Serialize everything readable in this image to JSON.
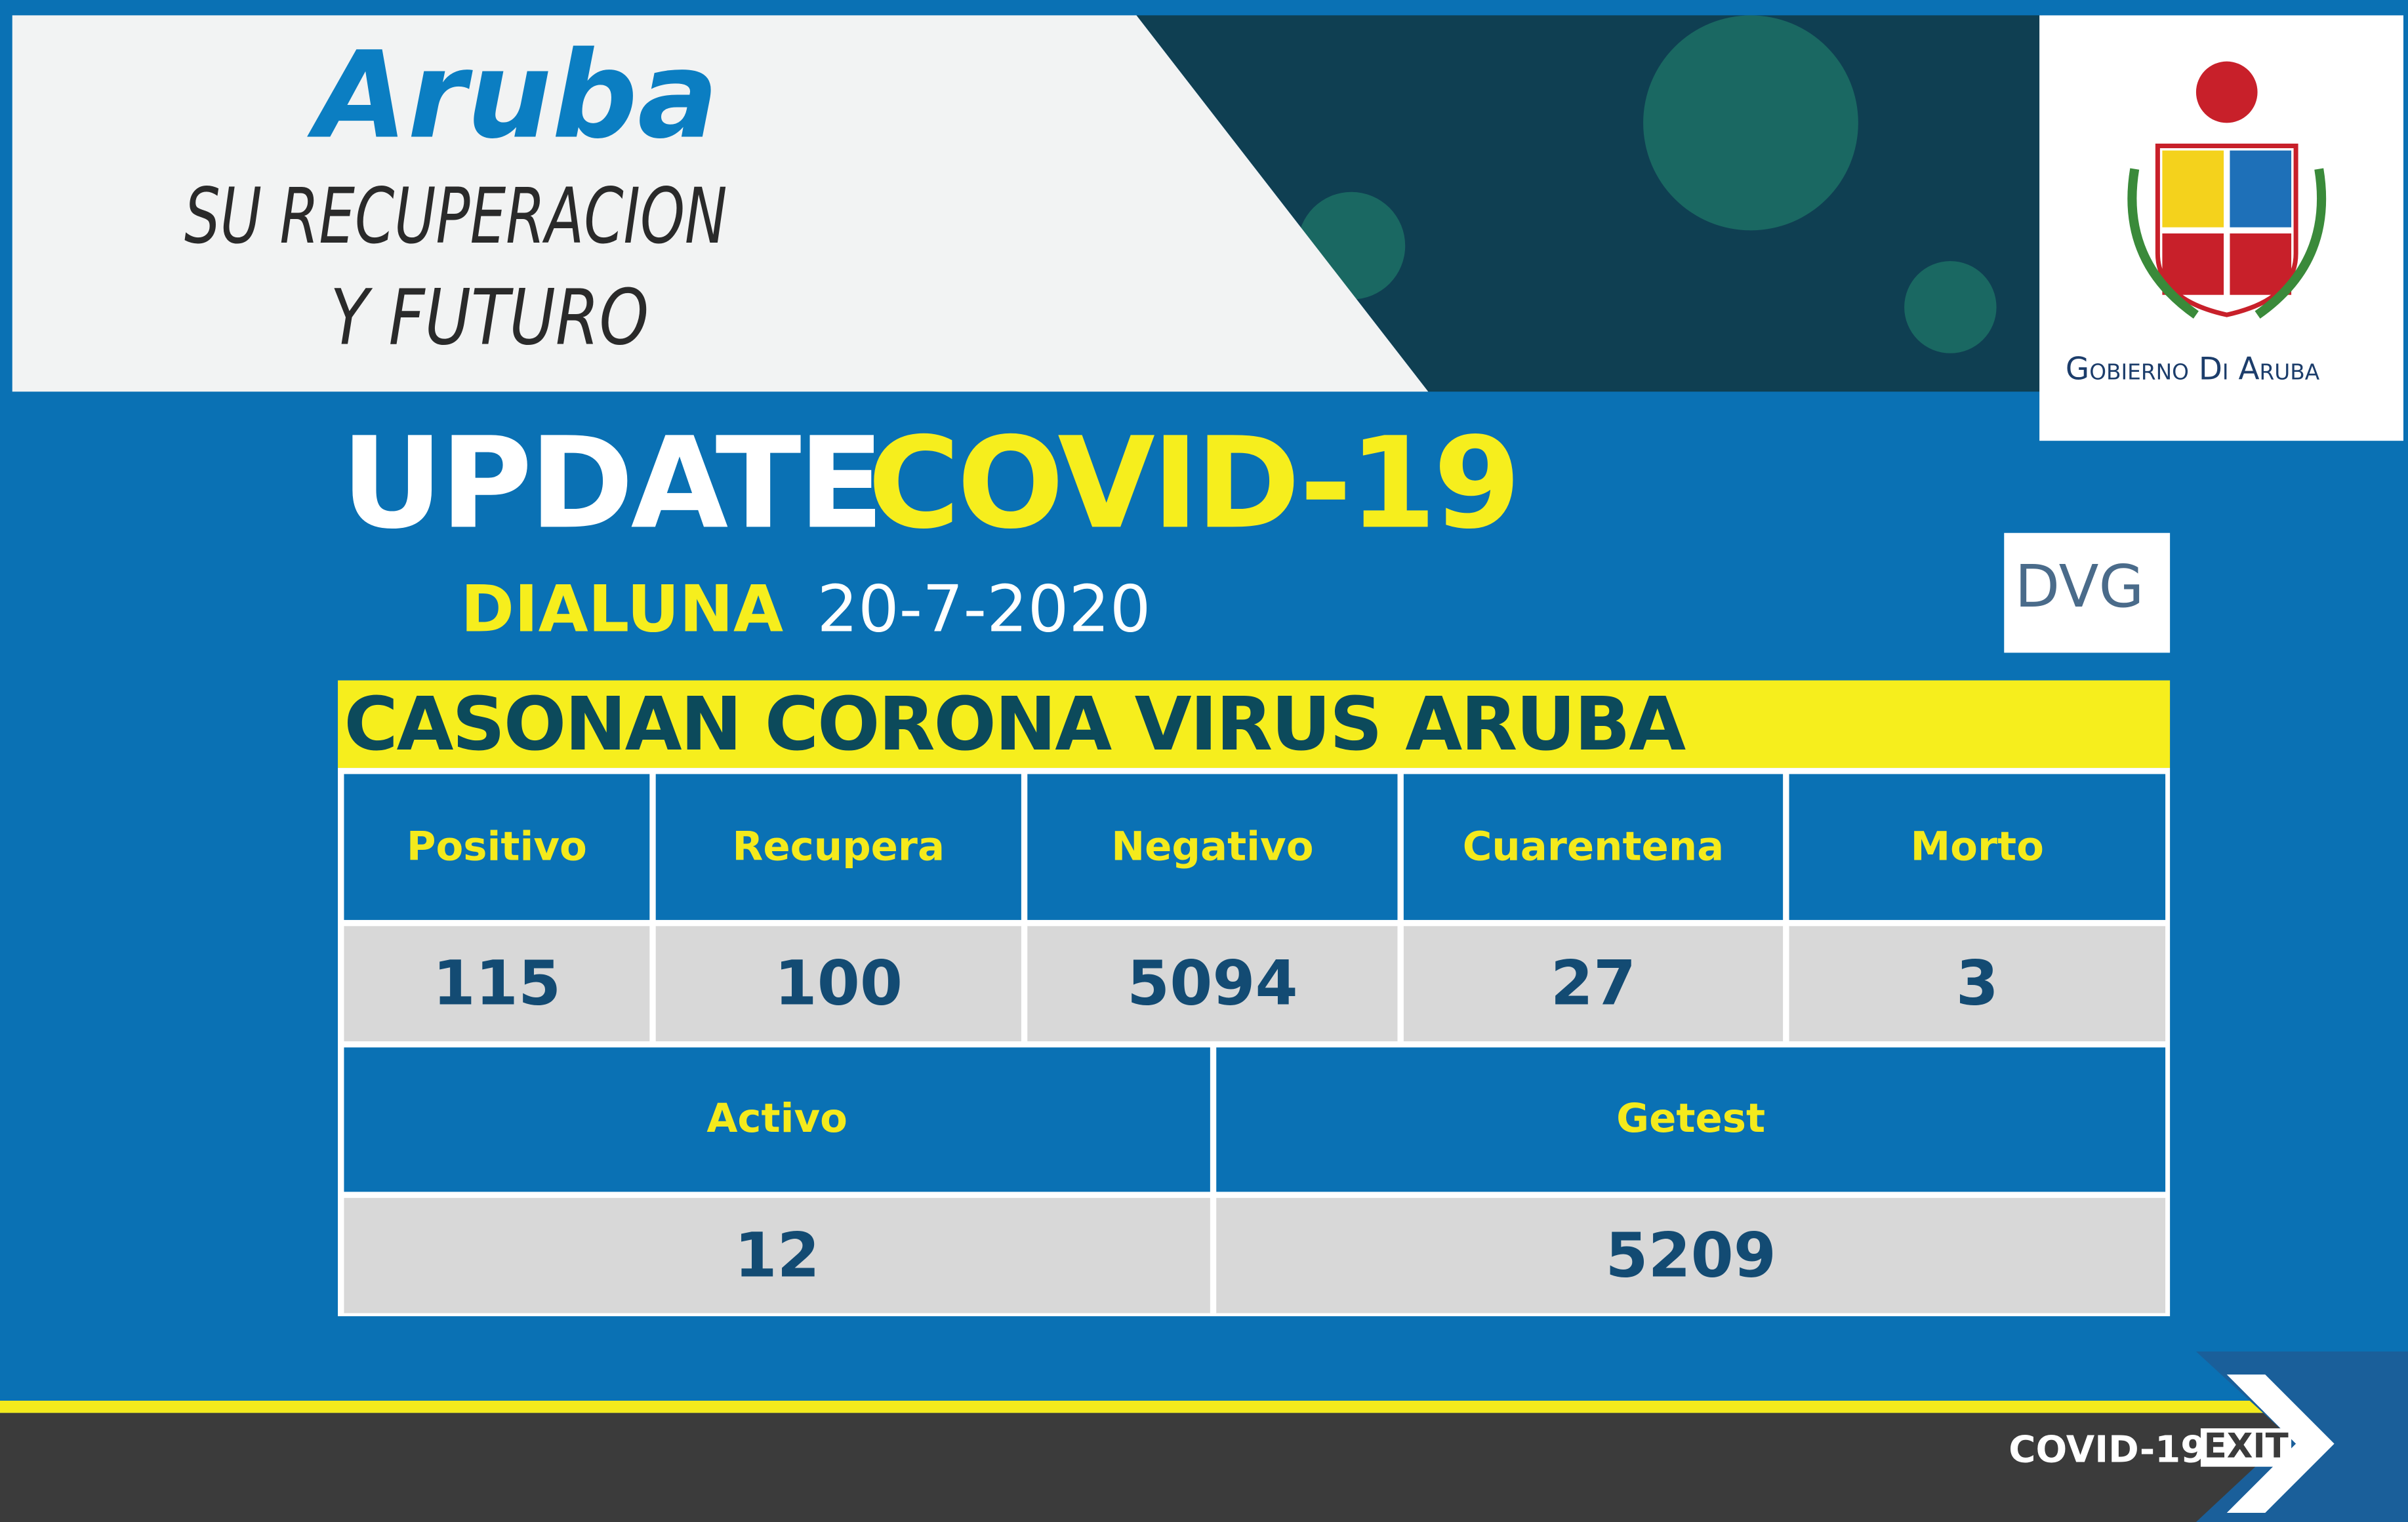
{
  "header": {
    "title": "Aruba",
    "subtitle_lines": [
      "SU RECUPERACION",
      "Y FUTURO"
    ],
    "logo_caption": "Gobierno Di Aruba"
  },
  "update": {
    "title": "UPDATE",
    "highlight": "COVID-19",
    "day": "DIALUNA",
    "date": "20-7-2020",
    "badge": "DVG"
  },
  "table": {
    "title": "CASONAN CORONA VIRUS ARUBA",
    "headers": [
      "Positivo",
      "Recupera",
      "Negativo",
      "Cuarentena",
      "Morto"
    ],
    "values": [
      115,
      100,
      5094,
      27,
      3
    ],
    "headers2": [
      "Activo",
      "Getest"
    ],
    "values2": [
      12,
      5209
    ]
  },
  "footer": {
    "brand": "COVID-19",
    "exit": "EXIT"
  }
}
